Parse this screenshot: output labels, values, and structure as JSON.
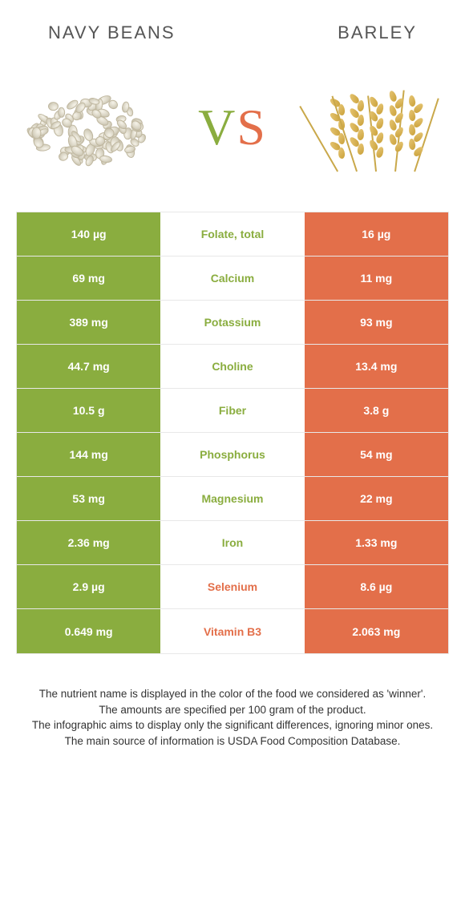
{
  "header": {
    "left_title": "Navy beans",
    "right_title": "Barley"
  },
  "vs": {
    "v": "V",
    "s": "S"
  },
  "colors": {
    "left": "#8aad3f",
    "right": "#e36f4a",
    "mid_bg": "#ffffff"
  },
  "rows": [
    {
      "left": "140 µg",
      "name": "Folate, total",
      "right": "16 µg",
      "winner": "left"
    },
    {
      "left": "69 mg",
      "name": "Calcium",
      "right": "11 mg",
      "winner": "left"
    },
    {
      "left": "389 mg",
      "name": "Potassium",
      "right": "93 mg",
      "winner": "left"
    },
    {
      "left": "44.7 mg",
      "name": "Choline",
      "right": "13.4 mg",
      "winner": "left"
    },
    {
      "left": "10.5 g",
      "name": "Fiber",
      "right": "3.8 g",
      "winner": "left"
    },
    {
      "left": "144 mg",
      "name": "Phosphorus",
      "right": "54 mg",
      "winner": "left"
    },
    {
      "left": "53 mg",
      "name": "Magnesium",
      "right": "22 mg",
      "winner": "left"
    },
    {
      "left": "2.36 mg",
      "name": "Iron",
      "right": "1.33 mg",
      "winner": "left"
    },
    {
      "left": "2.9 µg",
      "name": "Selenium",
      "right": "8.6 µg",
      "winner": "right"
    },
    {
      "left": "0.649 mg",
      "name": "Vitamin B3",
      "right": "2.063 mg",
      "winner": "right"
    }
  ],
  "footnotes": [
    "The nutrient name is displayed in the color of the food we considered as 'winner'.",
    "The amounts are specified per 100 gram of the product.",
    "The infographic aims to display only the significant differences, ignoring minor ones.",
    "The main source of information is USDA Food Composition Database."
  ]
}
